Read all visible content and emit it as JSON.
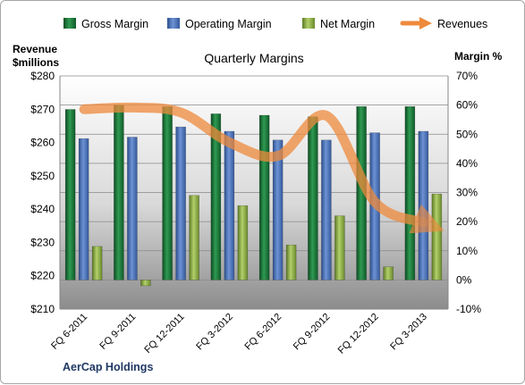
{
  "chart_data": {
    "type": "bar",
    "title": "Quarterly Margins",
    "company": "AerCap Holdings",
    "left_axis": {
      "label_line1": "Revenue",
      "label_line2": "$millions",
      "range": [
        210,
        280
      ],
      "ticks": [
        "$210",
        "$220",
        "$230",
        "$240",
        "$250",
        "$260",
        "$270",
        "$280"
      ]
    },
    "right_axis": {
      "label": "Margin %",
      "range": [
        -10,
        70
      ],
      "ticks": [
        "-10%",
        "0%",
        "10%",
        "20%",
        "30%",
        "40%",
        "50%",
        "60%",
        "70%"
      ]
    },
    "categories": [
      "FQ 6-2011",
      "FQ 9-2011",
      "FQ 12-2011",
      "FQ 3-2012",
      "FQ 6-2012",
      "FQ 9-2012",
      "FQ 12-2012",
      "FQ 3-2013"
    ],
    "series": [
      {
        "name": "Gross Margin",
        "axis": "right",
        "color": "#1e7a3c",
        "values": [
          58.5,
          60,
          59.5,
          57,
          56.5,
          56,
          59.5,
          59.5
        ]
      },
      {
        "name": "Operating Margin",
        "axis": "right",
        "color": "#4f73b8",
        "values": [
          48.5,
          49,
          52.5,
          51,
          48,
          48,
          50.5,
          51
        ]
      },
      {
        "name": "Net Margin",
        "axis": "right",
        "color": "#8fb04a",
        "values": [
          11.5,
          -2,
          29,
          25.5,
          12,
          22,
          4.5,
          29.5
        ]
      },
      {
        "name": "Revenues",
        "axis": "left",
        "type": "line",
        "color": "#ee8a3c",
        "values": [
          270,
          270.5,
          269,
          260,
          256,
          268,
          242,
          236
        ]
      }
    ],
    "legend": {
      "placement": "top"
    },
    "grid": true
  }
}
